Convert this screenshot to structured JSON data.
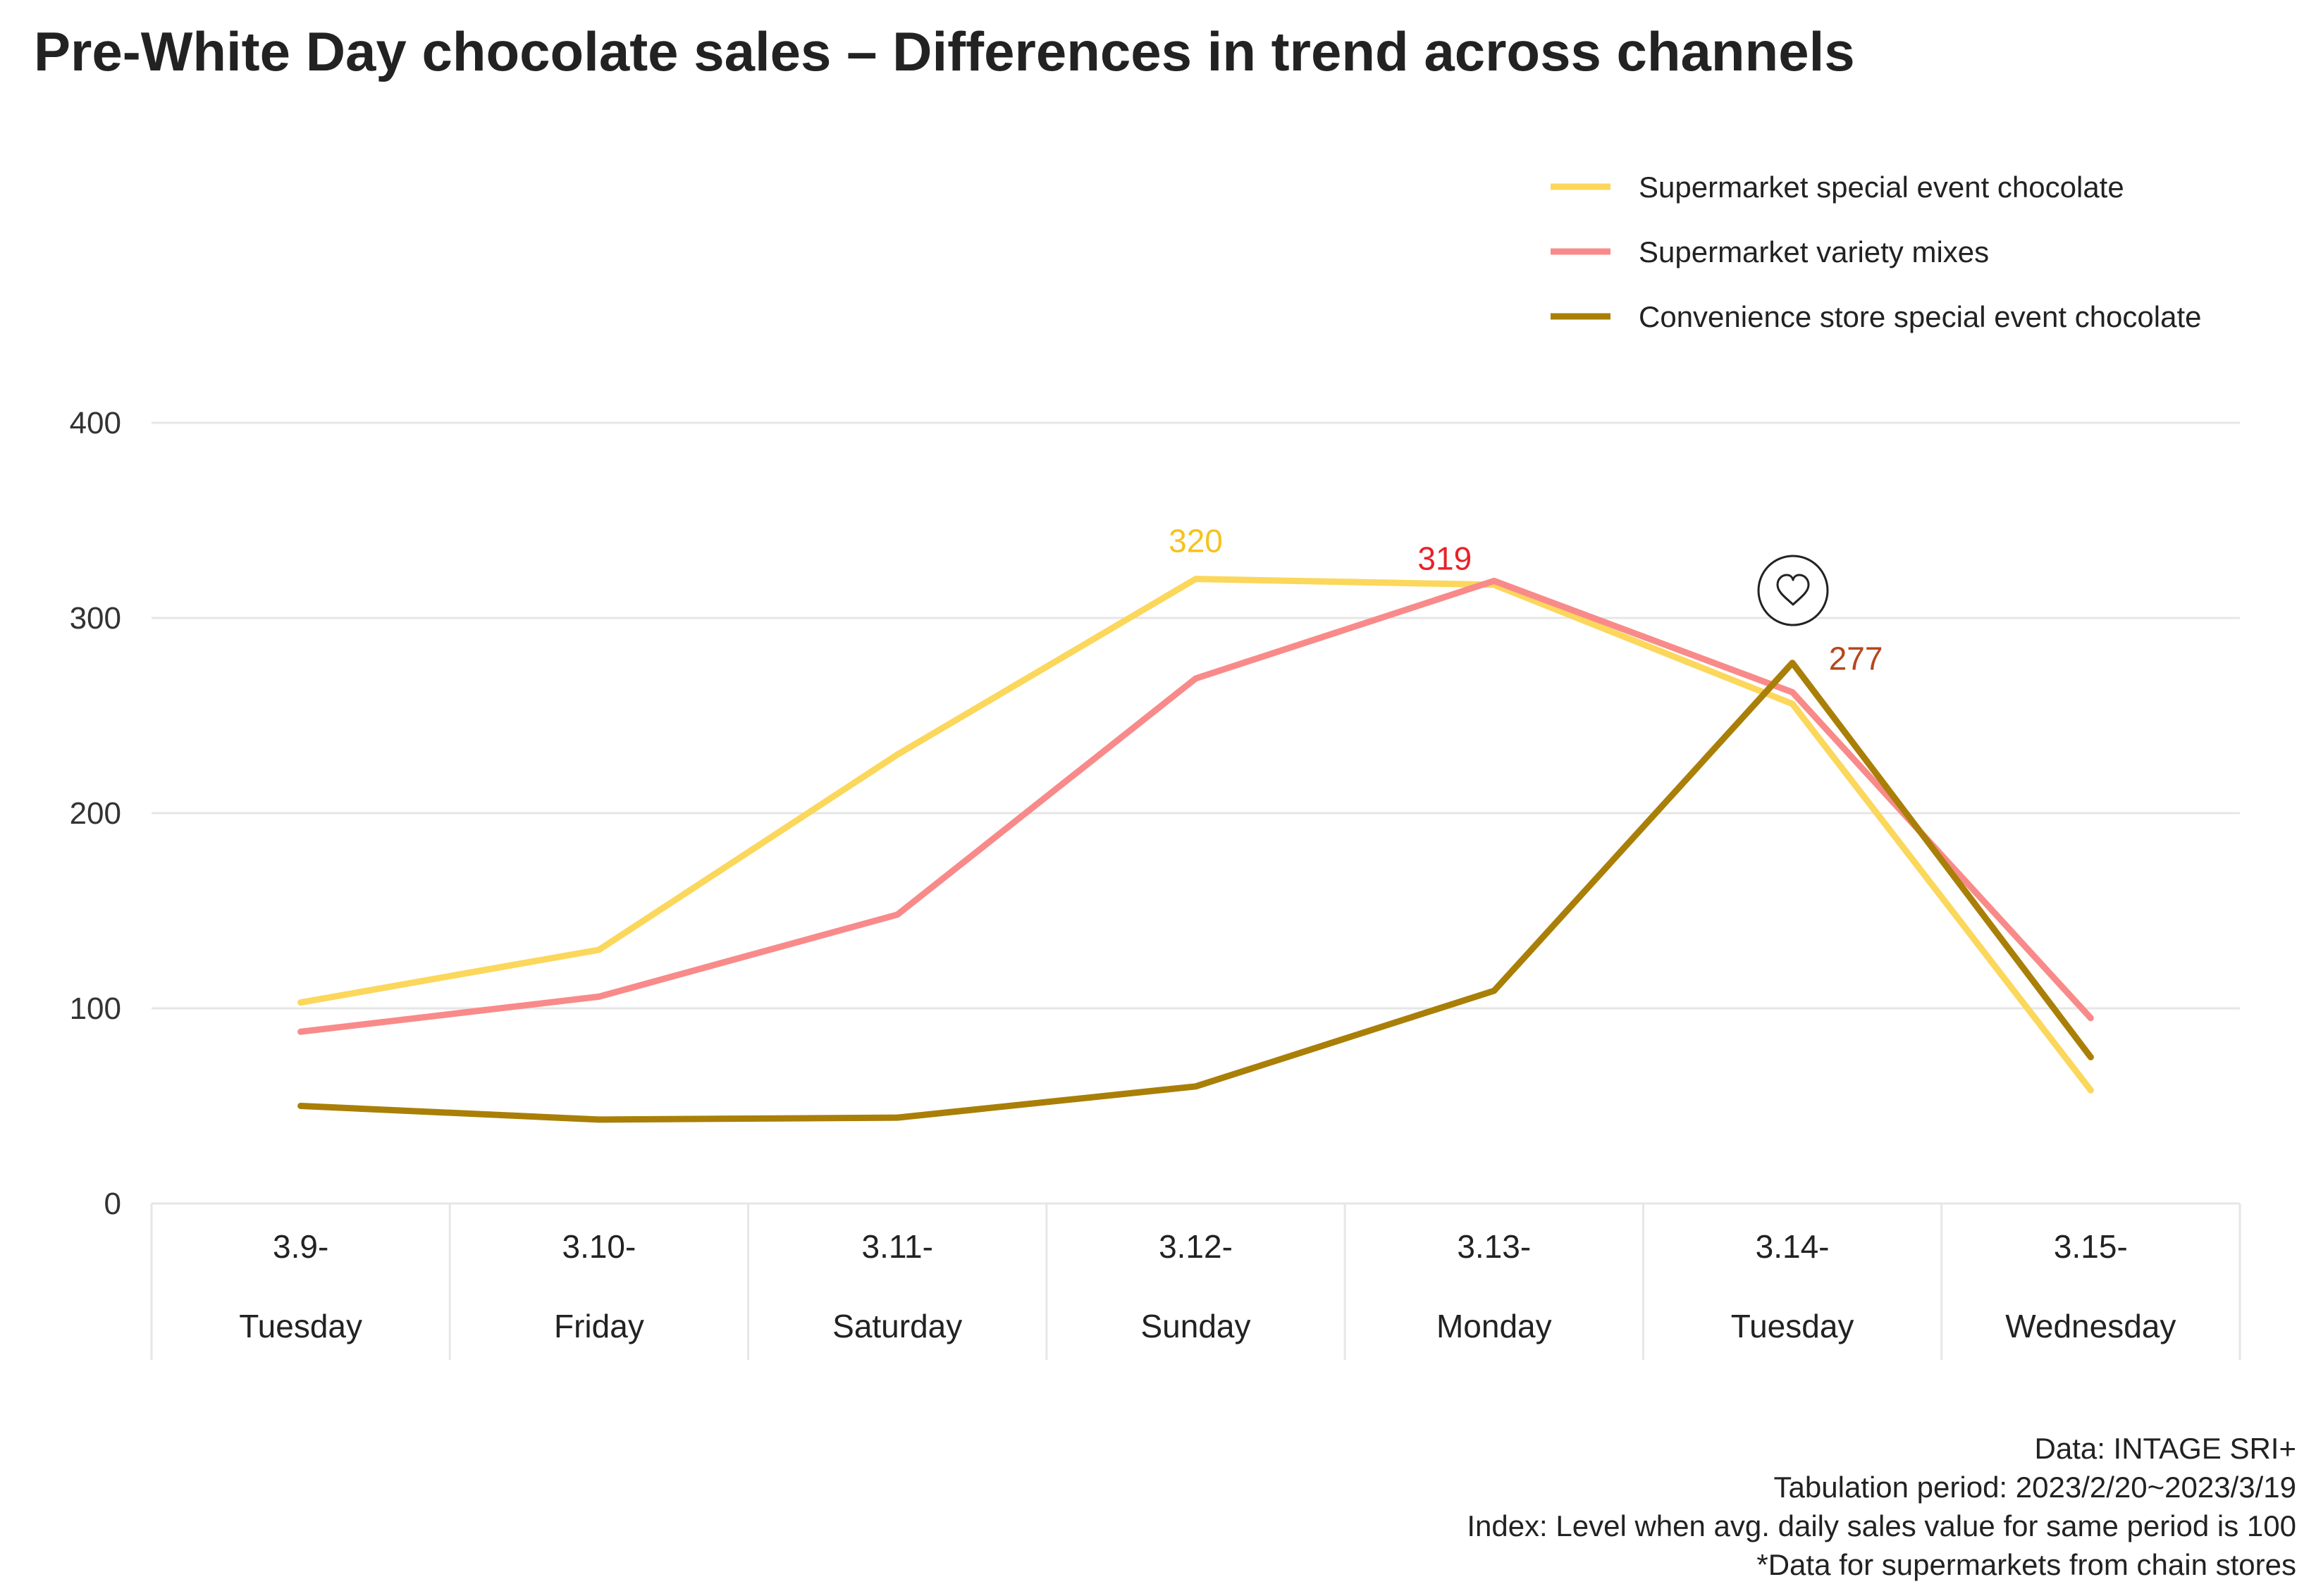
{
  "colors": {
    "supermarket_event": "#FBD75B",
    "supermarket_variety": "#F98A8A",
    "convenience_event": "#A97F07",
    "label_supermarket_event": "#F6C21C",
    "label_supermarket_variety": "#E8222A",
    "label_convenience_event": "#B5481B",
    "grid": "#E6E6E6",
    "text": "#222222"
  },
  "chart_data": {
    "type": "line",
    "title": "Pre-White Day chocolate sales – Differences in trend across channels",
    "categories": [
      {
        "date": "3.9-",
        "day": "Tuesday"
      },
      {
        "date": "3.10-",
        "day": "Friday"
      },
      {
        "date": "3.11-",
        "day": "Saturday"
      },
      {
        "date": "3.12-",
        "day": "Sunday"
      },
      {
        "date": "3.13-",
        "day": "Monday"
      },
      {
        "date": "3.14-",
        "day": "Tuesday"
      },
      {
        "date": "3.15-",
        "day": "Wednesday"
      }
    ],
    "series": [
      {
        "name": "Supermarket special event chocolate",
        "color_key": "supermarket_event",
        "values": [
          103,
          130,
          230,
          320,
          317,
          256,
          58
        ]
      },
      {
        "name": "Supermarket variety mixes",
        "color_key": "supermarket_variety",
        "values": [
          88,
          106,
          148,
          269,
          319,
          262,
          95
        ]
      },
      {
        "name": "Convenience store special event chocolate",
        "color_key": "convenience_event",
        "values": [
          50,
          43,
          44,
          60,
          109,
          277,
          75
        ]
      }
    ],
    "data_labels": [
      {
        "text": "320",
        "series": 0,
        "index": 3,
        "color_key": "label_supermarket_event"
      },
      {
        "text": "319",
        "series": 1,
        "index": 4,
        "color_key": "label_supermarket_variety"
      },
      {
        "text": "277",
        "series": 2,
        "index": 5,
        "color_key": "label_convenience_event"
      }
    ],
    "yticks": [
      "0",
      "100",
      "200",
      "300",
      "400"
    ],
    "ylim": [
      0,
      400
    ],
    "grid": true,
    "legend_position": "top-right",
    "annotation_icon": "heart-icon"
  },
  "notes": [
    "Data: INTAGE SRI+",
    "Tabulation period: 2023/2/20~2023/3/19",
    "Index: Level when avg. daily sales value for same period is 100",
    "*Data for supermarkets from chain stores"
  ]
}
